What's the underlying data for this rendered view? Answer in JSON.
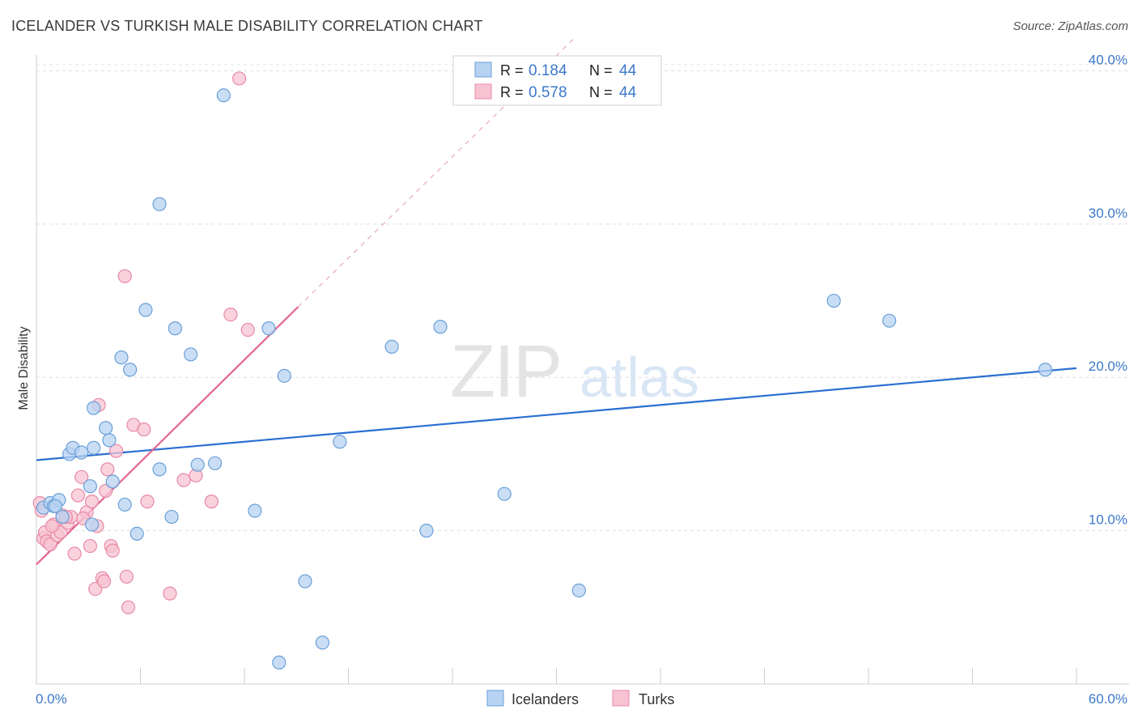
{
  "header": {
    "title": "ICELANDER VS TURKISH MALE DISABILITY CORRELATION CHART",
    "source": "Source: ZipAtlas.com"
  },
  "watermark": {
    "zip": "ZIP",
    "atlas": "atlas"
  },
  "legend": {
    "r_label": "R =",
    "n_label": "N =",
    "rows": [
      {
        "series": "Icelanders",
        "r": "0.184",
        "n": "44"
      },
      {
        "series": "Turks",
        "r": "0.578",
        "n": "44"
      }
    ]
  },
  "colors": {
    "icelanders_fill": "#b7d3f2",
    "icelanders_stroke": "#6a9fd8",
    "icelanders_line": "#2a6fd1",
    "turks_fill": "#f7c3d3",
    "turks_stroke": "#e88aa6",
    "turks_line": "#e4648e",
    "axis_value": "#3b78c9",
    "text_value": "#3b78c9"
  },
  "chart_data": {
    "type": "scatter",
    "title": "ICELANDER VS TURKISH MALE DISABILITY CORRELATION CHART",
    "xlabel": "",
    "ylabel": "Male Disability",
    "xlim": [
      0,
      60
    ],
    "ylim": [
      0,
      40.5
    ],
    "x_tick_labels": [
      "0.0%",
      "60.0%"
    ],
    "y_ticks": [
      10,
      20,
      30,
      40
    ],
    "y_tick_labels": [
      "10.0%",
      "20.0%",
      "30.0%",
      "40.0%"
    ],
    "grid": true,
    "legend_position": "top-center",
    "series": [
      {
        "name": "Icelanders",
        "r": 0.184,
        "n": 44,
        "trend": {
          "x": [
            0,
            60
          ],
          "y": [
            14.6,
            20.6
          ]
        },
        "points": [
          {
            "x": 0.4,
            "y": 11.5
          },
          {
            "x": 0.8,
            "y": 11.8
          },
          {
            "x": 1.0,
            "y": 11.6
          },
          {
            "x": 1.3,
            "y": 12.0
          },
          {
            "x": 1.5,
            "y": 10.9
          },
          {
            "x": 1.9,
            "y": 15.0
          },
          {
            "x": 2.1,
            "y": 15.4
          },
          {
            "x": 2.6,
            "y": 15.1
          },
          {
            "x": 3.1,
            "y": 12.9
          },
          {
            "x": 3.2,
            "y": 10.4
          },
          {
            "x": 3.3,
            "y": 15.4
          },
          {
            "x": 3.3,
            "y": 18.0
          },
          {
            "x": 4.0,
            "y": 16.7
          },
          {
            "x": 4.2,
            "y": 15.9
          },
          {
            "x": 4.4,
            "y": 13.2
          },
          {
            "x": 4.9,
            "y": 21.3
          },
          {
            "x": 5.1,
            "y": 11.7
          },
          {
            "x": 5.4,
            "y": 20.5
          },
          {
            "x": 5.8,
            "y": 9.8
          },
          {
            "x": 6.3,
            "y": 24.4
          },
          {
            "x": 7.1,
            "y": 14.0
          },
          {
            "x": 7.1,
            "y": 31.3
          },
          {
            "x": 7.8,
            "y": 10.9
          },
          {
            "x": 8.0,
            "y": 23.2
          },
          {
            "x": 8.9,
            "y": 21.5
          },
          {
            "x": 9.3,
            "y": 14.3
          },
          {
            "x": 10.3,
            "y": 14.4
          },
          {
            "x": 10.8,
            "y": 38.4
          },
          {
            "x": 12.6,
            "y": 11.3
          },
          {
            "x": 13.4,
            "y": 23.2
          },
          {
            "x": 14.0,
            "y": 1.4
          },
          {
            "x": 14.3,
            "y": 20.1
          },
          {
            "x": 15.5,
            "y": 6.7
          },
          {
            "x": 16.5,
            "y": 2.7
          },
          {
            "x": 17.5,
            "y": 15.8
          },
          {
            "x": 20.5,
            "y": 22.0
          },
          {
            "x": 22.5,
            "y": 10.0
          },
          {
            "x": 23.3,
            "y": 23.3
          },
          {
            "x": 27.0,
            "y": 12.4
          },
          {
            "x": 31.3,
            "y": 6.1
          },
          {
            "x": 46.0,
            "y": 25.0
          },
          {
            "x": 49.2,
            "y": 23.7
          },
          {
            "x": 58.2,
            "y": 20.5
          },
          {
            "x": 1.1,
            "y": 11.6
          }
        ]
      },
      {
        "name": "Turks",
        "r": 0.578,
        "n": 44,
        "trend": {
          "x": [
            0,
            15.1
          ],
          "y": [
            7.8,
            24.6
          ]
        },
        "trend_extension": {
          "x": [
            15.1,
            31.0
          ],
          "y": [
            24.6,
            42.1
          ]
        },
        "points": [
          {
            "x": 0.2,
            "y": 11.8
          },
          {
            "x": 0.4,
            "y": 9.5
          },
          {
            "x": 0.5,
            "y": 9.9
          },
          {
            "x": 0.6,
            "y": 9.3
          },
          {
            "x": 0.8,
            "y": 9.1
          },
          {
            "x": 1.0,
            "y": 10.4
          },
          {
            "x": 1.2,
            "y": 9.7
          },
          {
            "x": 1.4,
            "y": 9.9
          },
          {
            "x": 1.5,
            "y": 11.0
          },
          {
            "x": 1.8,
            "y": 10.5
          },
          {
            "x": 2.0,
            "y": 10.9
          },
          {
            "x": 2.2,
            "y": 8.5
          },
          {
            "x": 2.4,
            "y": 12.3
          },
          {
            "x": 2.6,
            "y": 13.5
          },
          {
            "x": 2.9,
            "y": 11.2
          },
          {
            "x": 3.2,
            "y": 11.9
          },
          {
            "x": 3.1,
            "y": 9.0
          },
          {
            "x": 3.4,
            "y": 6.2
          },
          {
            "x": 3.5,
            "y": 10.3
          },
          {
            "x": 3.6,
            "y": 18.2
          },
          {
            "x": 3.8,
            "y": 6.9
          },
          {
            "x": 3.9,
            "y": 6.7
          },
          {
            "x": 4.0,
            "y": 12.6
          },
          {
            "x": 4.1,
            "y": 14.0
          },
          {
            "x": 4.3,
            "y": 9.0
          },
          {
            "x": 4.4,
            "y": 8.7
          },
          {
            "x": 4.6,
            "y": 15.2
          },
          {
            "x": 5.1,
            "y": 26.6
          },
          {
            "x": 5.2,
            "y": 7.0
          },
          {
            "x": 5.3,
            "y": 5.0
          },
          {
            "x": 5.6,
            "y": 16.9
          },
          {
            "x": 6.2,
            "y": 16.6
          },
          {
            "x": 6.4,
            "y": 11.9
          },
          {
            "x": 7.7,
            "y": 5.9
          },
          {
            "x": 8.5,
            "y": 13.3
          },
          {
            "x": 9.2,
            "y": 13.6
          },
          {
            "x": 10.1,
            "y": 11.9
          },
          {
            "x": 11.2,
            "y": 24.1
          },
          {
            "x": 12.2,
            "y": 23.1
          },
          {
            "x": 11.7,
            "y": 39.5
          },
          {
            "x": 0.9,
            "y": 10.3
          },
          {
            "x": 1.7,
            "y": 10.9
          },
          {
            "x": 2.7,
            "y": 10.8
          },
          {
            "x": 0.3,
            "y": 11.3
          }
        ]
      }
    ]
  }
}
